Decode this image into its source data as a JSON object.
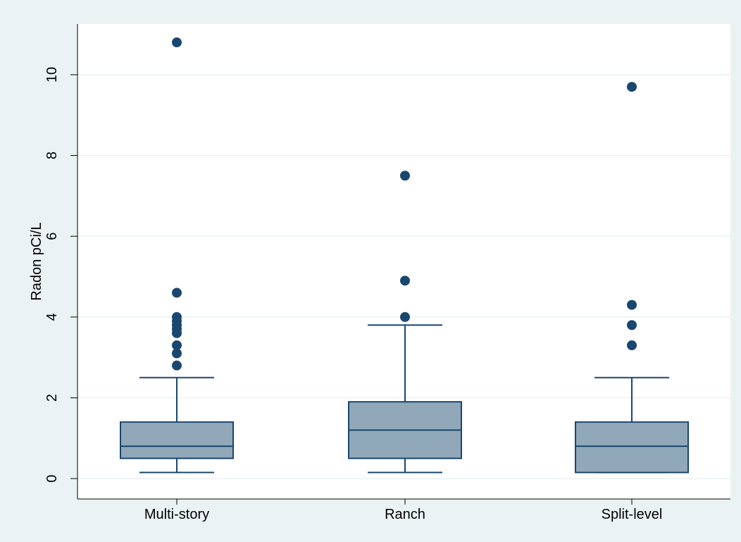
{
  "chart_data": {
    "type": "box",
    "ylabel": "Radon pCi/L",
    "xlabel": "",
    "ylim": [
      0,
      11
    ],
    "yticks": [
      0,
      2,
      4,
      6,
      8,
      10
    ],
    "grid": true,
    "categories": [
      "Multi-story",
      "Ranch",
      "Split-level"
    ],
    "boxes": [
      {
        "q1": 0.5,
        "median": 0.8,
        "q3": 1.4,
        "whisker_low": 0.15,
        "whisker_high": 2.5,
        "outliers": [
          2.8,
          3.1,
          3.3,
          3.6,
          3.7,
          3.8,
          3.9,
          4.0,
          4.6,
          10.8
        ]
      },
      {
        "q1": 0.5,
        "median": 1.2,
        "q3": 1.9,
        "whisker_low": 0.15,
        "whisker_high": 3.8,
        "outliers": [
          4.0,
          4.9,
          7.5
        ]
      },
      {
        "q1": 0.15,
        "median": 0.8,
        "q3": 1.4,
        "whisker_low": 0.15,
        "whisker_high": 2.5,
        "outliers": [
          3.3,
          3.8,
          4.3,
          9.7
        ]
      }
    ]
  },
  "colors": {
    "background": "#eaf2f3",
    "plot_area": "#ffffff",
    "grid": "#eaf2f3",
    "box_fill": "#90a8b8",
    "box_line": "#1a476f",
    "marker": "#1a476f"
  }
}
